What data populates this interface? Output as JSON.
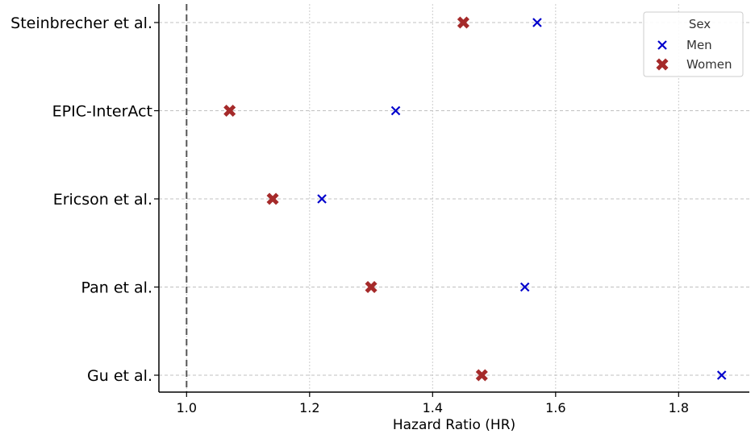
{
  "chart_data": {
    "type": "scatter",
    "title": "",
    "xlabel": "Hazard Ratio (HR)",
    "ylabel": "",
    "categories": [
      "Steinbrecher et al.",
      "EPIC-InterAct",
      "Ericson et al.",
      "Pan et al.",
      "Gu et al."
    ],
    "series": [
      {
        "name": "Men",
        "marker": "x",
        "color": "#0000cc",
        "values": [
          1.57,
          1.34,
          1.22,
          1.55,
          1.87
        ]
      },
      {
        "name": "Women",
        "marker": "filled-x",
        "color": "#a52a2a",
        "values": [
          1.45,
          1.07,
          1.14,
          1.3,
          1.48
        ]
      }
    ],
    "xlim": [
      0.955,
      1.915
    ],
    "xticks": [
      1.0,
      1.2,
      1.4,
      1.6,
      1.8
    ],
    "xtick_labels": [
      "1.0",
      "1.2",
      "1.4",
      "1.6",
      "1.8"
    ],
    "reference_line": {
      "x": 1.0,
      "style": "dashed",
      "color": "#555555"
    },
    "grid": true,
    "legend": {
      "title": "Sex",
      "position": "top-right"
    }
  }
}
